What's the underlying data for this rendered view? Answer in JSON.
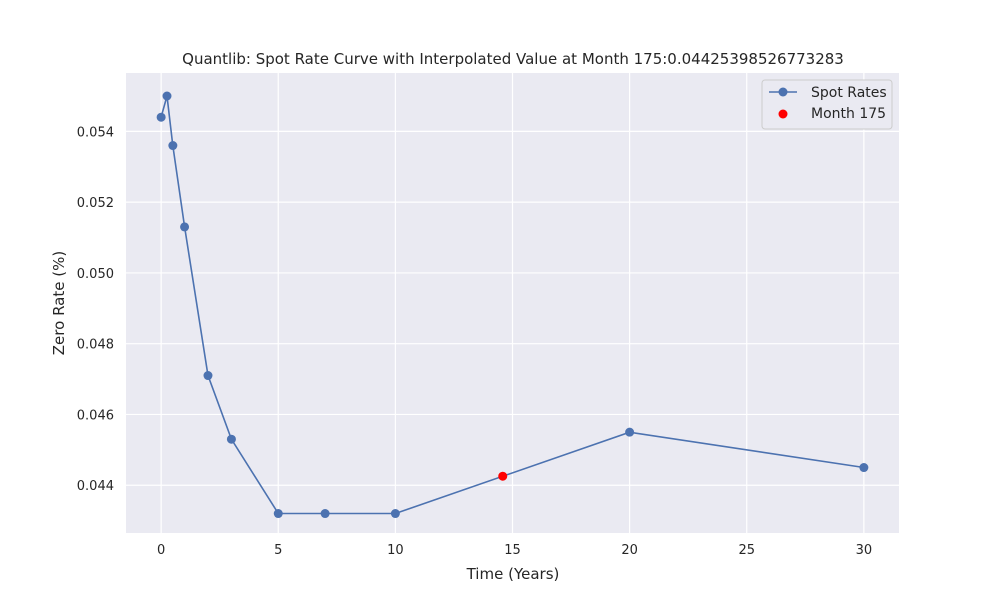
{
  "chart_data": {
    "type": "line",
    "title": "Quantlib: Spot Rate Curve with Interpolated Value at Month 175:0.04425398526773283",
    "xlabel": "Time (Years)",
    "ylabel": "Zero Rate (%)",
    "xlim": [
      -1.5,
      31.5
    ],
    "ylim": [
      0.04265,
      0.05565
    ],
    "xticks": [
      0,
      5,
      10,
      15,
      20,
      25,
      30
    ],
    "yticks": [
      0.044,
      0.046,
      0.048,
      0.05,
      0.052,
      0.054
    ],
    "ytick_labels": [
      "0.044",
      "0.046",
      "0.048",
      "0.050",
      "0.052",
      "0.054"
    ],
    "grid": true,
    "legend_position": "top-right",
    "series": [
      {
        "name": "Spot Rates",
        "color": "#4c72b0",
        "marker": "circle",
        "x": [
          0.0,
          0.25,
          0.5,
          1,
          2,
          3,
          5,
          7,
          10,
          20,
          30
        ],
        "y": [
          0.0544,
          0.055,
          0.0536,
          0.0513,
          0.0471,
          0.0453,
          0.0432,
          0.0432,
          0.0432,
          0.0455,
          0.0445
        ]
      }
    ],
    "highlight": {
      "name": "Month 175",
      "color": "#ff0000",
      "x": 14.583,
      "y": 0.04425398526773283
    }
  }
}
